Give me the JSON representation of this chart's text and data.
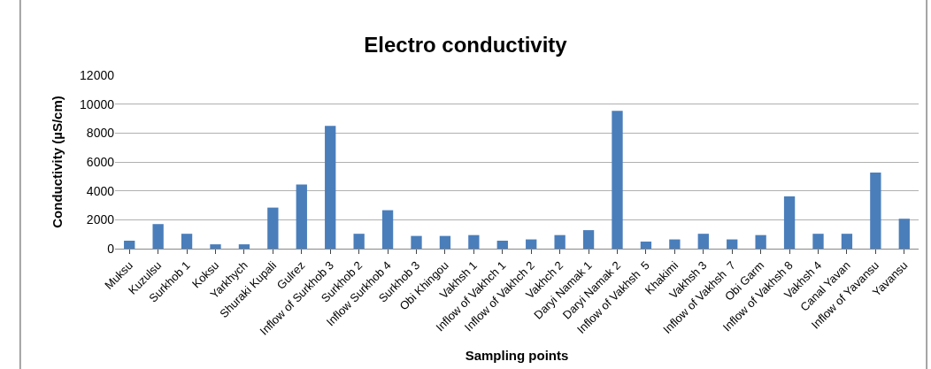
{
  "chart_data": {
    "type": "bar",
    "title": "Electro conductivity",
    "xlabel": "Sampling points",
    "ylabel": "Conductivity (µS/cm)",
    "categories": [
      "Muksu",
      "Kuzulsu",
      "Surkhob 1",
      "Koksu",
      "Yarkhych",
      "Shuraki Kupali",
      "Gulrez",
      "Inflow of Surkhob 3",
      "Surkhob 2",
      "Inflow Surkhob 4",
      "Surkhob 3",
      "Obi Khingou",
      "Vakhsh 1",
      "Inflow of Vakhch 1",
      "Inflow of Vakhch 2",
      "Vakhch 2",
      "Daryi Namak 1",
      "Daryi Namak 2",
      "Inflow of Vakhsh  5",
      "Khakimi",
      "Vakhsh 3",
      "Inflow of Vakhsh  7",
      "Obi Garm",
      "Inflow of Vakhsh 8",
      "Vakhsh 4",
      "Canal Yavan",
      "Inflow of Yavansu",
      "Yavansu"
    ],
    "values": [
      550,
      1700,
      1030,
      300,
      300,
      2840,
      4440,
      8500,
      1030,
      2660,
      880,
      880,
      940,
      550,
      640,
      940,
      1280,
      9540,
      490,
      640,
      1030,
      640,
      940,
      3620,
      1030,
      1030,
      5260,
      2070
    ],
    "color": "#4a7ebb",
    "ylim": [
      0,
      12000
    ],
    "yticks": [
      0,
      2000,
      4000,
      6000,
      8000,
      10000,
      12000
    ],
    "grid": "y"
  }
}
